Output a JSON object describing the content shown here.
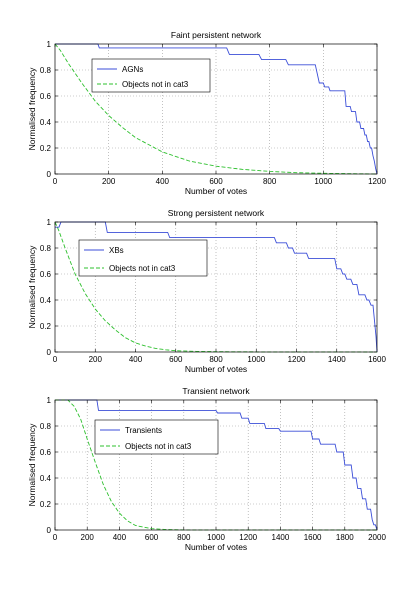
{
  "chart_data": [
    {
      "type": "line",
      "title": "Faint persistent network",
      "xlabel": "Number of votes",
      "ylabel": "Normalised frequency",
      "xlim": [
        0,
        1200
      ],
      "ylim": [
        0,
        1
      ],
      "xticks": [
        0,
        200,
        400,
        600,
        800,
        1000,
        1200
      ],
      "yticks": [
        0,
        0.2,
        0.4,
        0.6,
        0.8,
        1
      ],
      "grid": true,
      "legend_position": "upper-left",
      "series": [
        {
          "name": "AGNs",
          "style": "step",
          "color": "#3b4ed8",
          "x": [
            0,
            160,
            165,
            390,
            400,
            640,
            650,
            760,
            770,
            860,
            870,
            970,
            985,
            1000,
            1005,
            1020,
            1025,
            1080,
            1085,
            1100,
            1105,
            1120,
            1125,
            1135,
            1140,
            1150,
            1155,
            1160,
            1165,
            1170,
            1175,
            1180,
            1185,
            1190,
            1195,
            1200
          ],
          "y": [
            1,
            1,
            0.97,
            0.97,
            0.97,
            0.97,
            0.92,
            0.92,
            0.88,
            0.88,
            0.84,
            0.84,
            0.7,
            0.7,
            0.67,
            0.67,
            0.64,
            0.64,
            0.52,
            0.52,
            0.48,
            0.48,
            0.4,
            0.4,
            0.35,
            0.35,
            0.3,
            0.3,
            0.25,
            0.25,
            0.2,
            0.2,
            0.14,
            0.1,
            0.04,
            0
          ]
        },
        {
          "name": "Objects not in cat3",
          "style": "dashed",
          "color": "#2ec02e",
          "x": [
            0,
            20,
            50,
            100,
            150,
            200,
            250,
            300,
            400,
            500,
            600,
            700,
            800,
            900,
            1000,
            1100,
            1200
          ],
          "y": [
            1,
            0.95,
            0.85,
            0.7,
            0.56,
            0.45,
            0.36,
            0.28,
            0.17,
            0.1,
            0.06,
            0.035,
            0.02,
            0.01,
            0.005,
            0.002,
            0
          ]
        }
      ]
    },
    {
      "type": "line",
      "title": "Strong persistent network",
      "xlabel": "Number of votes",
      "ylabel": "Normalised frequency",
      "xlim": [
        0,
        1600
      ],
      "ylim": [
        0,
        1
      ],
      "xticks": [
        0,
        200,
        400,
        600,
        800,
        1000,
        1200,
        1400,
        1600
      ],
      "yticks": [
        0,
        0.2,
        0.4,
        0.6,
        0.8,
        1
      ],
      "grid": true,
      "legend_position": "upper-left",
      "series": [
        {
          "name": "XBs",
          "style": "step",
          "color": "#3b4ed8",
          "x": [
            0,
            20,
            30,
            250,
            260,
            560,
            570,
            1090,
            1100,
            1150,
            1160,
            1180,
            1190,
            1250,
            1260,
            1300,
            1310,
            1390,
            1400,
            1420,
            1430,
            1440,
            1450,
            1470,
            1480,
            1500,
            1510,
            1540,
            1550,
            1560,
            1570,
            1580,
            1590,
            1595,
            1600
          ],
          "y": [
            0.96,
            0.96,
            1,
            1,
            0.92,
            0.92,
            0.88,
            0.88,
            0.84,
            0.84,
            0.8,
            0.8,
            0.76,
            0.76,
            0.72,
            0.72,
            0.72,
            0.72,
            0.64,
            0.64,
            0.6,
            0.6,
            0.56,
            0.56,
            0.52,
            0.52,
            0.44,
            0.44,
            0.4,
            0.4,
            0.36,
            0.36,
            0.2,
            0.12,
            0
          ]
        },
        {
          "name": "Objects not in cat3",
          "style": "dashed",
          "color": "#2ec02e",
          "x": [
            0,
            20,
            50,
            100,
            150,
            200,
            250,
            300,
            350,
            400,
            450,
            500,
            550,
            600,
            700,
            800,
            1000,
            1600
          ],
          "y": [
            1,
            0.93,
            0.8,
            0.6,
            0.45,
            0.33,
            0.24,
            0.17,
            0.11,
            0.07,
            0.045,
            0.028,
            0.017,
            0.01,
            0.005,
            0.002,
            0.001,
            0
          ]
        }
      ]
    },
    {
      "type": "line",
      "title": "Transient network",
      "xlabel": "Number of votes",
      "ylabel": "Normalised frequency",
      "xlim": [
        0,
        2000
      ],
      "ylim": [
        0,
        1
      ],
      "xticks": [
        0,
        200,
        400,
        600,
        800,
        1000,
        1200,
        1400,
        1600,
        1800,
        2000
      ],
      "yticks": [
        0,
        0.2,
        0.4,
        0.6,
        0.8,
        1
      ],
      "grid": true,
      "legend_position": "upper-left",
      "series": [
        {
          "name": "Transients",
          "style": "step",
          "color": "#3b4ed8",
          "x": [
            0,
            260,
            270,
            1000,
            1010,
            1150,
            1160,
            1200,
            1210,
            1300,
            1310,
            1390,
            1400,
            1590,
            1600,
            1640,
            1650,
            1740,
            1750,
            1790,
            1800,
            1840,
            1850,
            1870,
            1880,
            1900,
            1910,
            1930,
            1940,
            1960,
            1970,
            1980,
            1990,
            2000
          ],
          "y": [
            1,
            1,
            0.92,
            0.92,
            0.9,
            0.9,
            0.86,
            0.86,
            0.82,
            0.82,
            0.78,
            0.78,
            0.76,
            0.76,
            0.7,
            0.7,
            0.66,
            0.66,
            0.6,
            0.6,
            0.5,
            0.5,
            0.4,
            0.4,
            0.32,
            0.32,
            0.24,
            0.24,
            0.16,
            0.16,
            0.08,
            0.04,
            0.04,
            0
          ]
        },
        {
          "name": "Objects not in cat3",
          "style": "dashed",
          "color": "#2ec02e",
          "x": [
            0,
            80,
            120,
            160,
            200,
            250,
            300,
            350,
            400,
            450,
            500,
            600,
            700,
            800,
            2000
          ],
          "y": [
            1,
            1,
            0.95,
            0.85,
            0.7,
            0.52,
            0.35,
            0.22,
            0.13,
            0.07,
            0.035,
            0.01,
            0.003,
            0.001,
            0
          ]
        }
      ]
    }
  ]
}
